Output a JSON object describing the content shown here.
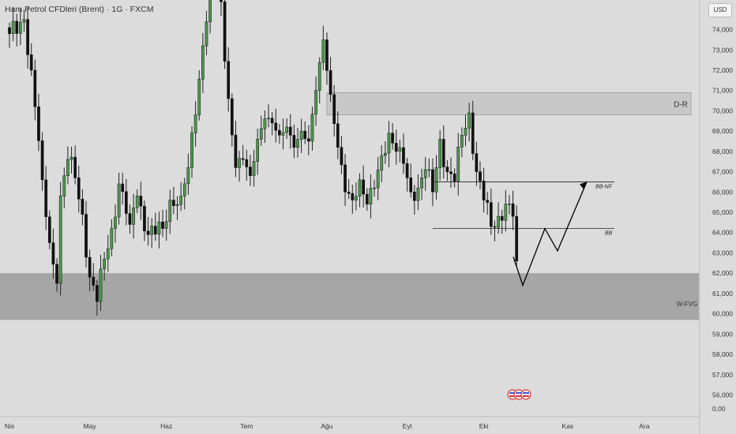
{
  "header": {
    "title": "Ham Petrol CFDleri (Brent) · 1G · FXCM",
    "currency_button": "USD"
  },
  "colors": {
    "background": "#dcdcdc",
    "up": "#4c9a4c",
    "down": "#111111",
    "zone_light": "#c8c8c8",
    "zone_dark": "#a6a6a6",
    "line": "#222222"
  },
  "chart_data": {
    "type": "candlestick",
    "instrument": "Ham Petrol CFDleri (Brent)",
    "interval": "1G",
    "source": "FXCM",
    "ylim": [
      55.5,
      75.5
    ],
    "y_ticks": [
      56,
      57,
      58,
      59,
      60,
      61,
      62,
      63,
      64,
      65,
      66,
      67,
      68,
      69,
      70,
      71,
      72,
      73,
      74
    ],
    "y_tick_labels": [
      "56,000",
      "57,000",
      "58,000",
      "59,000",
      "60,000",
      "61,000",
      "62,000",
      "63,000",
      "64,000",
      "65,000",
      "66,000",
      "67,000",
      "68,000",
      "69,000",
      "70,000",
      "71,000",
      "72,000",
      "73,000",
      "74,000"
    ],
    "y_bottom_label": "0,00",
    "x_labels": [
      "Nis",
      "May",
      "Haz",
      "Tem",
      "Ağu",
      "Eyl",
      "Eki",
      "Kas",
      "Ara"
    ],
    "x_label_bar_index": [
      0,
      22,
      43,
      65,
      87,
      109,
      130,
      153,
      174
    ],
    "bar_count": 140,
    "close_anchors": [
      [
        0,
        73.8
      ],
      [
        4,
        74.5
      ],
      [
        6,
        72.0
      ],
      [
        9,
        66.6
      ],
      [
        11,
        63.5
      ],
      [
        13,
        61.5
      ],
      [
        14,
        65.8
      ],
      [
        16,
        67.6
      ],
      [
        18,
        66.7
      ],
      [
        20,
        64.9
      ],
      [
        22,
        61.8
      ],
      [
        24,
        60.6
      ],
      [
        26,
        62.7
      ],
      [
        28,
        64.2
      ],
      [
        30,
        66.4
      ],
      [
        33,
        64.4
      ],
      [
        35,
        65.8
      ],
      [
        38,
        63.9
      ],
      [
        42,
        64.2
      ],
      [
        44,
        65.6
      ],
      [
        47,
        65.8
      ],
      [
        49,
        67.2
      ],
      [
        51,
        69.8
      ],
      [
        53,
        73.2
      ],
      [
        55,
        76.5
      ],
      [
        57,
        77.0
      ],
      [
        60,
        70.6
      ],
      [
        62,
        67.2
      ],
      [
        64,
        67.6
      ],
      [
        66,
        66.8
      ],
      [
        68,
        68.6
      ],
      [
        70,
        69.6
      ],
      [
        72,
        69.4
      ],
      [
        74,
        68.8
      ],
      [
        76,
        69.2
      ],
      [
        78,
        68.2
      ],
      [
        80,
        69.0
      ],
      [
        82,
        68.5
      ],
      [
        84,
        71.0
      ],
      [
        86,
        73.5
      ],
      [
        88,
        70.8
      ],
      [
        90,
        68.2
      ],
      [
        92,
        66.0
      ],
      [
        94,
        65.6
      ],
      [
        96,
        66.6
      ],
      [
        98,
        65.4
      ],
      [
        100,
        66.2
      ],
      [
        102,
        67.8
      ],
      [
        104,
        68.9
      ],
      [
        106,
        68.0
      ],
      [
        108,
        67.4
      ],
      [
        110,
        66.0
      ],
      [
        112,
        66.2
      ],
      [
        114,
        67.1
      ],
      [
        116,
        66.0
      ],
      [
        118,
        68.6
      ],
      [
        120,
        67.0
      ],
      [
        122,
        66.5
      ],
      [
        124,
        68.8
      ],
      [
        126,
        69.9
      ],
      [
        128,
        67.0
      ],
      [
        130,
        65.6
      ],
      [
        132,
        64.3
      ],
      [
        134,
        64.8
      ],
      [
        136,
        65.4
      ],
      [
        138,
        64.8
      ],
      [
        139,
        62.6
      ]
    ],
    "zones": [
      {
        "label": "D-R",
        "y_top": 70.9,
        "y_bottom": 69.8
      },
      {
        "label": "W-FVG",
        "y_top": 62.0,
        "y_bottom": 59.7
      }
    ],
    "levels": [
      {
        "label": "BB-NF",
        "y": 66.5
      },
      {
        "label": "BB",
        "y": 64.2
      }
    ],
    "projection_path_y": [
      62.8,
      61.4,
      64.2,
      63.1,
      66.5
    ]
  }
}
